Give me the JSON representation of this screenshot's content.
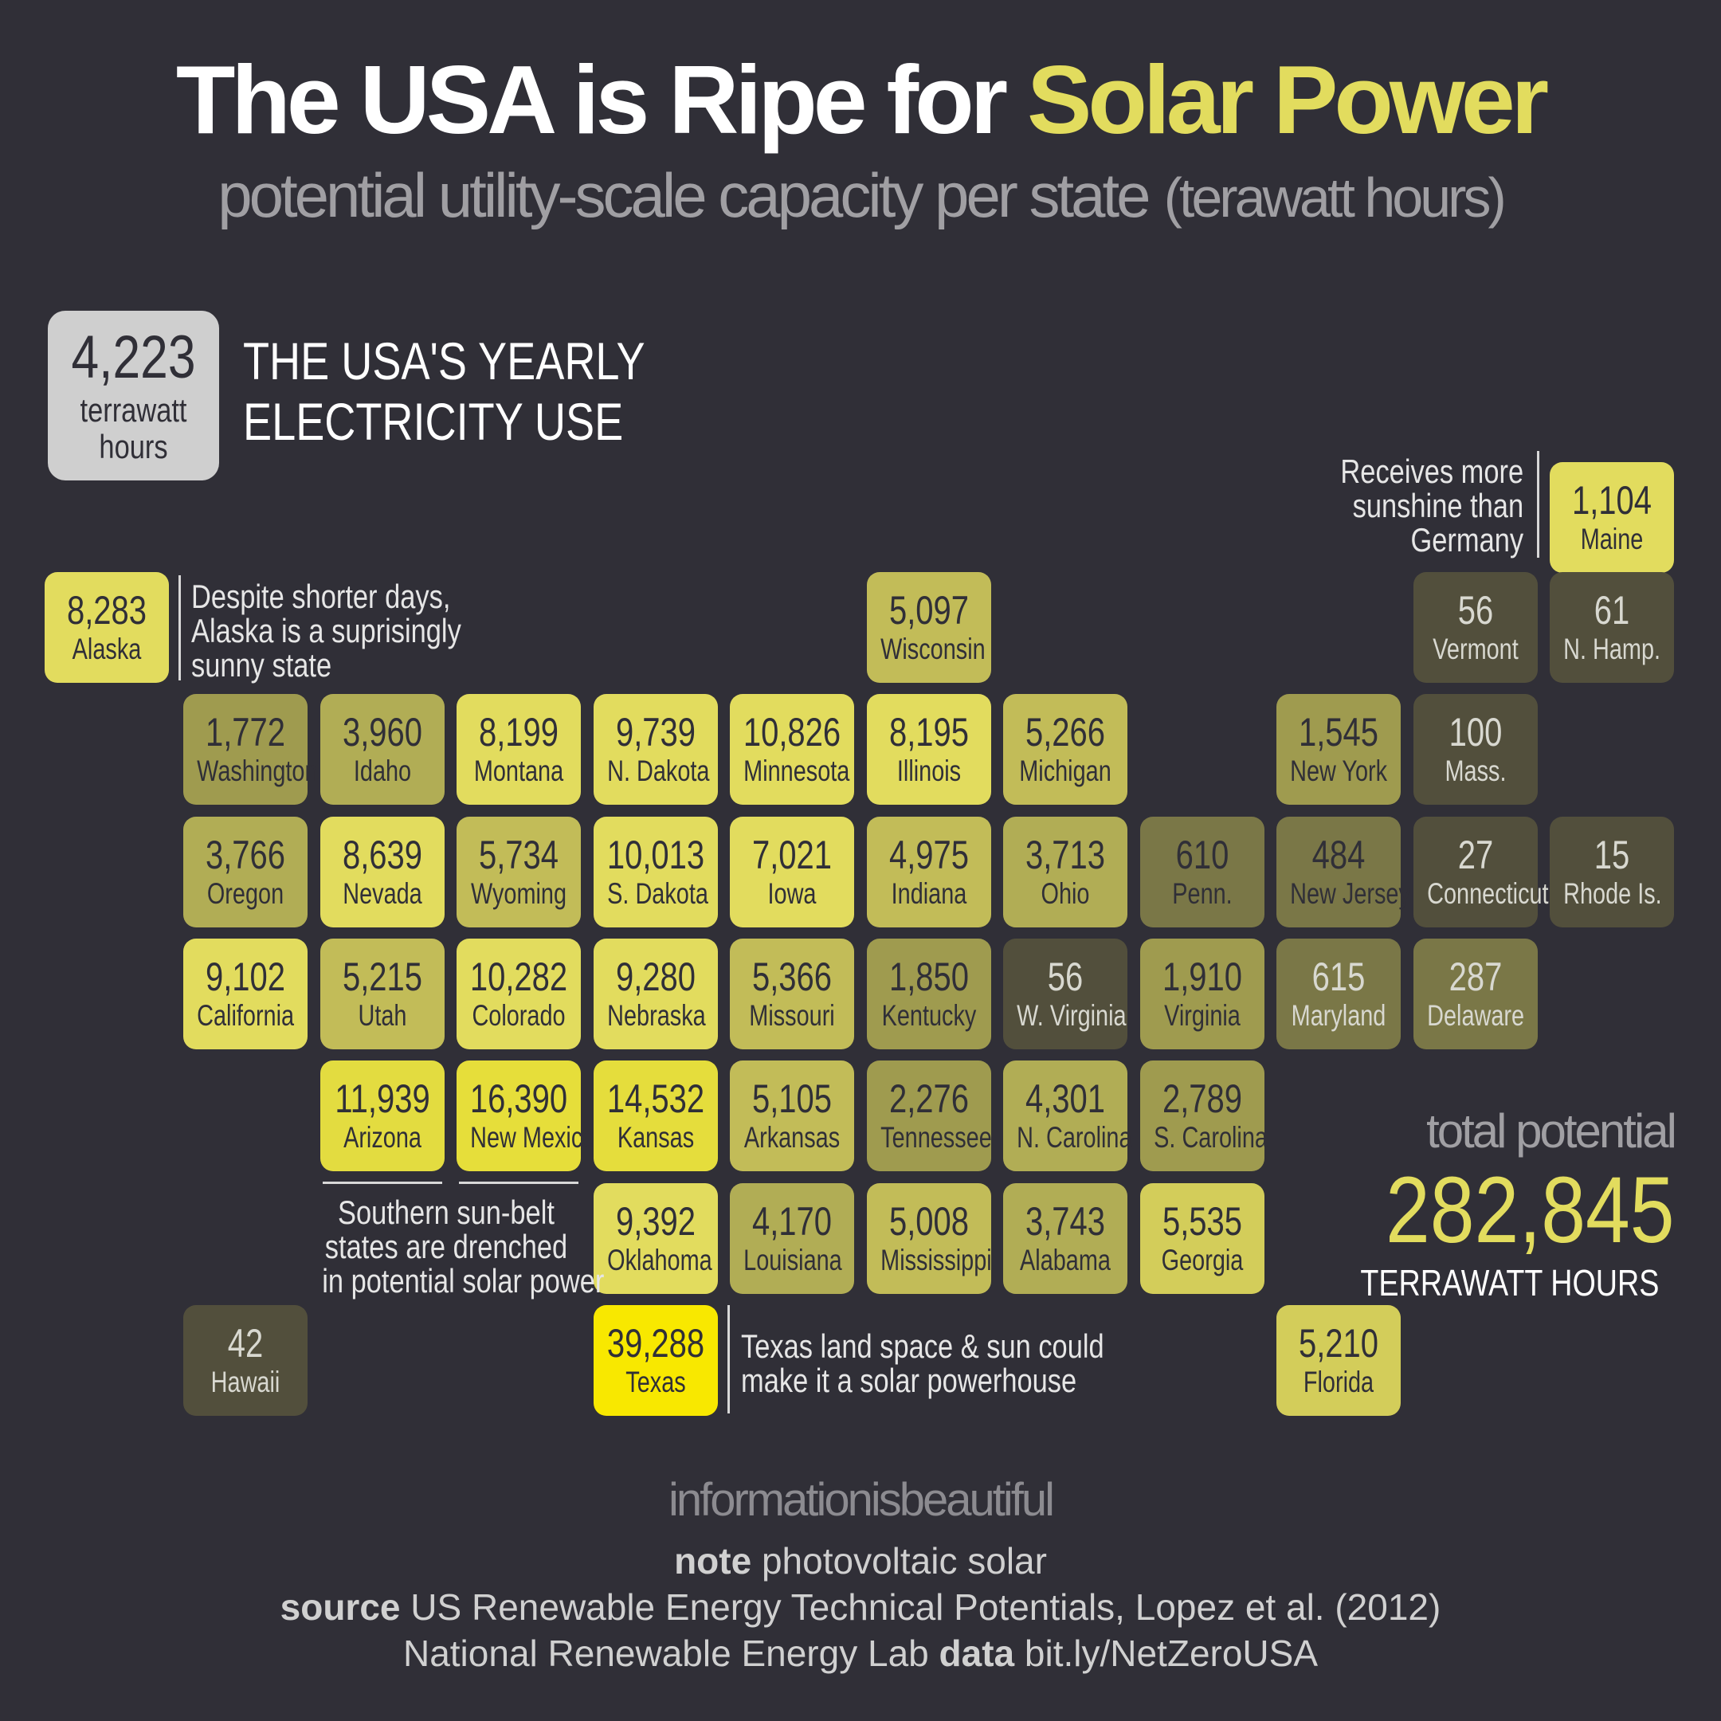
{
  "title": {
    "prefix": "The USA is Ripe for ",
    "highlight": "Solar Power"
  },
  "subtitle": {
    "main": "potential utility-scale capacity per state",
    "unit": "(terawatt hours)"
  },
  "yearly_use": {
    "value": "4,223",
    "unit_line1": "terrawatt",
    "unit_line2": "hours",
    "label_line1": "THE USA'S YEARLY",
    "label_line2": "ELECTRICITY USE"
  },
  "notes": {
    "alaska": [
      "Despite shorter days,",
      "Alaska is a suprisingly",
      "sunny state"
    ],
    "maine": [
      "Receives more",
      "sunshine than",
      "Germany"
    ],
    "sunbelt": [
      "Southern sun-belt",
      "states are drenched",
      "in potential solar power"
    ],
    "texas": [
      "Texas land space & sun could",
      "make it a solar powerhouse"
    ]
  },
  "total": {
    "label": "total potential",
    "value": "282,845",
    "unit": "TERRAWATT HOURS"
  },
  "brand": "informationisbeautiful",
  "footer": {
    "note_label": "note",
    "note": "photovoltaic solar",
    "source_label": "source",
    "source": "US Renewable Energy Technical Potentials, Lopez et al. (2012)",
    "source2": "National Renewable Energy Lab",
    "data_label": "data",
    "data": "bit.ly/NetZeroUSA"
  },
  "colors": {
    "background": "#302f37",
    "accent": "#e2dc5e",
    "texas": "#f8e800"
  },
  "states": [
    {
      "name": "Alaska",
      "value": "8,283",
      "color": "#e2dc5e",
      "light": false
    },
    {
      "name": "Maine",
      "value": "1,104",
      "color": "#e2dc5e",
      "light": false
    },
    {
      "name": "Wisconsin",
      "value": "5,097",
      "color": "#c2bc58",
      "light": false
    },
    {
      "name": "Vermont",
      "value": "56",
      "color": "#524f3c",
      "light": true
    },
    {
      "name": "N. Hamp.",
      "value": "61",
      "color": "#524f3c",
      "light": true
    },
    {
      "name": "Washington",
      "value": "1,772",
      "color": "#9f9b4f",
      "light": false
    },
    {
      "name": "Idaho",
      "value": "3,960",
      "color": "#b1ad55",
      "light": false
    },
    {
      "name": "Montana",
      "value": "8,199",
      "color": "#e2dc5e",
      "light": false
    },
    {
      "name": "N. Dakota",
      "value": "9,739",
      "color": "#e2dc5e",
      "light": false
    },
    {
      "name": "Minnesota",
      "value": "10,826",
      "color": "#e2dc5e",
      "light": false
    },
    {
      "name": "Illinois",
      "value": "8,195",
      "color": "#e2dc5e",
      "light": false
    },
    {
      "name": "Michigan",
      "value": "5,266",
      "color": "#c2bc58",
      "light": false
    },
    {
      "name": "New York",
      "value": "1,545",
      "color": "#9f9b4f",
      "light": false
    },
    {
      "name": "Mass.",
      "value": "100",
      "color": "#524f3c",
      "light": true
    },
    {
      "name": "Oregon",
      "value": "3,766",
      "color": "#b1ad55",
      "light": false
    },
    {
      "name": "Nevada",
      "value": "8,639",
      "color": "#e2dc5e",
      "light": false
    },
    {
      "name": "Wyoming",
      "value": "5,734",
      "color": "#c2bc58",
      "light": false
    },
    {
      "name": "S. Dakota",
      "value": "10,013",
      "color": "#e2dc5e",
      "light": false
    },
    {
      "name": "Iowa",
      "value": "7,021",
      "color": "#e2dc5e",
      "light": false
    },
    {
      "name": "Indiana",
      "value": "4,975",
      "color": "#c2bc58",
      "light": false
    },
    {
      "name": "Ohio",
      "value": "3,713",
      "color": "#b1ad55",
      "light": false
    },
    {
      "name": "Penn.",
      "value": "610",
      "color": "#7a7747",
      "light": false
    },
    {
      "name": "New Jersey",
      "value": "484",
      "color": "#7a7747",
      "light": false
    },
    {
      "name": "Connecticut",
      "value": "27",
      "color": "#524f3c",
      "light": true
    },
    {
      "name": "Rhode Is.",
      "value": "15",
      "color": "#524f3c",
      "light": true
    },
    {
      "name": "California",
      "value": "9,102",
      "color": "#e2dc5e",
      "light": false
    },
    {
      "name": "Utah",
      "value": "5,215",
      "color": "#c2bc58",
      "light": false
    },
    {
      "name": "Colorado",
      "value": "10,282",
      "color": "#e2dc5e",
      "light": false
    },
    {
      "name": "Nebraska",
      "value": "9,280",
      "color": "#e2dc5e",
      "light": false
    },
    {
      "name": "Missouri",
      "value": "5,366",
      "color": "#c2bc58",
      "light": false
    },
    {
      "name": "Kentucky",
      "value": "1,850",
      "color": "#9f9b4f",
      "light": false
    },
    {
      "name": "W. Virginia",
      "value": "56",
      "color": "#524f3c",
      "light": true
    },
    {
      "name": "Virginia",
      "value": "1,910",
      "color": "#9f9b4f",
      "light": false
    },
    {
      "name": "Maryland",
      "value": "615",
      "color": "#7a7747",
      "light": true
    },
    {
      "name": "Delaware",
      "value": "287",
      "color": "#7a7747",
      "light": true
    },
    {
      "name": "Arizona",
      "value": "11,939",
      "color": "#e3dc40",
      "light": false
    },
    {
      "name": "New Mexico",
      "value": "16,390",
      "color": "#e6de3a",
      "light": false
    },
    {
      "name": "Kansas",
      "value": "14,532",
      "color": "#e5dd3c",
      "light": false
    },
    {
      "name": "Arkansas",
      "value": "5,105",
      "color": "#c2bc58",
      "light": false
    },
    {
      "name": "Tennessee",
      "value": "2,276",
      "color": "#9f9b4f",
      "light": false
    },
    {
      "name": "N. Carolina",
      "value": "4,301",
      "color": "#b1ad55",
      "light": false
    },
    {
      "name": "S. Carolina",
      "value": "2,789",
      "color": "#9f9b4f",
      "light": false
    },
    {
      "name": "Oklahoma",
      "value": "9,392",
      "color": "#e2dc5e",
      "light": false
    },
    {
      "name": "Louisiana",
      "value": "4,170",
      "color": "#b1ad55",
      "light": false
    },
    {
      "name": "Mississippi",
      "value": "5,008",
      "color": "#c2bc58",
      "light": false
    },
    {
      "name": "Alabama",
      "value": "3,743",
      "color": "#b1ad55",
      "light": false
    },
    {
      "name": "Georgia",
      "value": "5,535",
      "color": "#d3cd5a",
      "light": false
    },
    {
      "name": "Hawaii",
      "value": "42",
      "color": "#524f3c",
      "light": true
    },
    {
      "name": "Texas",
      "value": "39,288",
      "color": "#f8e800",
      "light": false
    },
    {
      "name": "Florida",
      "value": "5,210",
      "color": "#d3cd5a",
      "light": false
    }
  ]
}
